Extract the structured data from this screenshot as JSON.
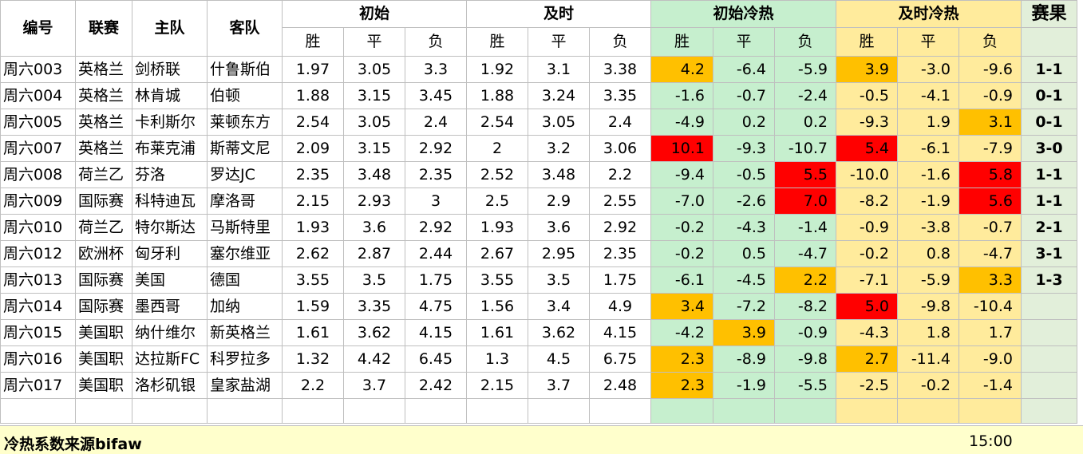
{
  "headers": {
    "id": "编号",
    "league": "联赛",
    "home": "主队",
    "away": "客队",
    "initial": "初始",
    "live": "及时",
    "initial_heat": "初始冷热",
    "live_heat": "及时冷热",
    "result": "赛果",
    "win": "胜",
    "draw": "平",
    "loss": "负"
  },
  "rows": [
    {
      "id": "周六003",
      "league": "英格兰",
      "home": "剑桥联",
      "away": "什鲁斯伯",
      "iw": "1.97",
      "id_": "3.05",
      "il": "3.3",
      "lw": "1.92",
      "ld": "3.1",
      "ll": "3.38",
      "hiw": "4.2",
      "hid": "-6.4",
      "hil": "-5.9",
      "hlw": "3.9",
      "hld": "-3.0",
      "hll": "-9.6",
      "result": "1-1"
    },
    {
      "id": "周六004",
      "league": "英格兰",
      "home": "林肯城",
      "away": "伯顿",
      "iw": "1.88",
      "id_": "3.15",
      "il": "3.45",
      "lw": "1.88",
      "ld": "3.24",
      "ll": "3.35",
      "hiw": "-1.6",
      "hid": "-0.7",
      "hil": "-2.4",
      "hlw": "-0.5",
      "hld": "-4.1",
      "hll": "-0.9",
      "result": "0-1"
    },
    {
      "id": "周六005",
      "league": "英格兰",
      "home": "卡利斯尔",
      "away": "莱顿东方",
      "iw": "2.54",
      "id_": "3.05",
      "il": "2.4",
      "lw": "2.54",
      "ld": "3.05",
      "ll": "2.4",
      "hiw": "-4.9",
      "hid": "0.2",
      "hil": "0.2",
      "hlw": "-9.3",
      "hld": "1.9",
      "hll": "3.1",
      "result": "0-1"
    },
    {
      "id": "周六007",
      "league": "英格兰",
      "home": "布莱克浦",
      "away": "斯蒂文尼",
      "iw": "2.09",
      "id_": "3.15",
      "il": "2.92",
      "lw": "2",
      "ld": "3.2",
      "ll": "3.06",
      "hiw": "10.1",
      "hid": "-9.3",
      "hil": "-10.7",
      "hlw": "5.4",
      "hld": "-6.1",
      "hll": "-7.9",
      "result": "3-0"
    },
    {
      "id": "周六008",
      "league": "荷兰乙",
      "home": "芬洛",
      "away": "罗达JC",
      "iw": "2.35",
      "id_": "3.48",
      "il": "2.35",
      "lw": "2.52",
      "ld": "3.48",
      "ll": "2.2",
      "hiw": "-9.4",
      "hid": "-0.5",
      "hil": "5.5",
      "hlw": "-10.0",
      "hld": "-1.6",
      "hll": "5.8",
      "result": "1-1"
    },
    {
      "id": "周六009",
      "league": "国际赛",
      "home": "科特迪瓦",
      "away": "摩洛哥",
      "iw": "2.15",
      "id_": "2.93",
      "il": "3",
      "lw": "2.5",
      "ld": "2.9",
      "ll": "2.55",
      "hiw": "-7.0",
      "hid": "-2.6",
      "hil": "7.0",
      "hlw": "-8.2",
      "hld": "-1.9",
      "hll": "5.6",
      "result": "1-1"
    },
    {
      "id": "周六010",
      "league": "荷兰乙",
      "home": "特尔斯达",
      "away": "马斯特里",
      "iw": "1.93",
      "id_": "3.6",
      "il": "2.92",
      "lw": "1.93",
      "ld": "3.6",
      "ll": "2.92",
      "hiw": "-0.2",
      "hid": "-4.3",
      "hil": "-1.4",
      "hlw": "-0.9",
      "hld": "-3.8",
      "hll": "-0.7",
      "result": "2-1"
    },
    {
      "id": "周六012",
      "league": "欧洲杯",
      "home": "匈牙利",
      "away": "塞尔维亚",
      "iw": "2.62",
      "id_": "2.87",
      "il": "2.44",
      "lw": "2.67",
      "ld": "2.95",
      "ll": "2.35",
      "hiw": "-0.2",
      "hid": "0.5",
      "hil": "-4.7",
      "hlw": "-0.2",
      "hld": "0.8",
      "hll": "-4.7",
      "result": "3-1"
    },
    {
      "id": "周六013",
      "league": "国际赛",
      "home": "美国",
      "away": "德国",
      "iw": "3.55",
      "id_": "3.5",
      "il": "1.75",
      "lw": "3.55",
      "ld": "3.5",
      "ll": "1.75",
      "hiw": "-6.1",
      "hid": "-4.5",
      "hil": "2.2",
      "hlw": "-7.1",
      "hld": "-5.9",
      "hll": "3.3",
      "result": "1-3"
    },
    {
      "id": "周六014",
      "league": "国际赛",
      "home": "墨西哥",
      "away": "加纳",
      "iw": "1.59",
      "id_": "3.35",
      "il": "4.75",
      "lw": "1.56",
      "ld": "3.4",
      "ll": "4.9",
      "hiw": "3.4",
      "hid": "-7.2",
      "hil": "-8.2",
      "hlw": "5.0",
      "hld": "-9.8",
      "hll": "-10.4",
      "result": ""
    },
    {
      "id": "周六015",
      "league": "美国职",
      "home": "纳什维尔",
      "away": "新英格兰",
      "iw": "1.61",
      "id_": "3.62",
      "il": "4.15",
      "lw": "1.61",
      "ld": "3.62",
      "ll": "4.15",
      "hiw": "-4.2",
      "hid": "3.9",
      "hil": "-0.9",
      "hlw": "-4.3",
      "hld": "1.8",
      "hll": "1.7",
      "result": ""
    },
    {
      "id": "周六016",
      "league": "美国职",
      "home": "达拉斯FC",
      "away": "科罗拉多",
      "iw": "1.32",
      "id_": "4.42",
      "il": "6.45",
      "lw": "1.3",
      "ld": "4.5",
      "ll": "6.75",
      "hiw": "2.3",
      "hid": "-8.9",
      "hil": "-9.8",
      "hlw": "2.7",
      "hld": "-11.4",
      "hll": "-9.0",
      "result": ""
    },
    {
      "id": "周六017",
      "league": "美国职",
      "home": "洛杉矶银",
      "away": "皇家盐湖",
      "iw": "2.2",
      "id_": "3.7",
      "il": "2.42",
      "lw": "2.15",
      "ld": "3.7",
      "ll": "2.48",
      "hiw": "2.3",
      "hid": "-1.9",
      "hil": "-5.5",
      "hlw": "-2.5",
      "hld": "-0.2",
      "hll": "-1.4",
      "result": ""
    }
  ],
  "highlights": {
    "colors": {
      "orange": "#ffc000",
      "red": "#ff0000",
      "green": "#c6efce",
      "yellow": "#ffeb9c"
    },
    "cells": [
      {
        "row": 0,
        "col": "hiw",
        "color": "orange"
      },
      {
        "row": 0,
        "col": "hlw",
        "color": "orange"
      },
      {
        "row": 2,
        "col": "hll",
        "color": "orange"
      },
      {
        "row": 3,
        "col": "hiw",
        "color": "red"
      },
      {
        "row": 3,
        "col": "hlw",
        "color": "red"
      },
      {
        "row": 4,
        "col": "hil",
        "color": "red"
      },
      {
        "row": 4,
        "col": "hll",
        "color": "red"
      },
      {
        "row": 5,
        "col": "hil",
        "color": "red"
      },
      {
        "row": 5,
        "col": "hll",
        "color": "red"
      },
      {
        "row": 8,
        "col": "hil",
        "color": "orange"
      },
      {
        "row": 8,
        "col": "hll",
        "color": "orange"
      },
      {
        "row": 9,
        "col": "hiw",
        "color": "orange"
      },
      {
        "row": 9,
        "col": "hlw",
        "color": "red"
      },
      {
        "row": 10,
        "col": "hid",
        "color": "orange"
      },
      {
        "row": 11,
        "col": "hiw",
        "color": "orange"
      },
      {
        "row": 11,
        "col": "hlw",
        "color": "orange"
      },
      {
        "row": 12,
        "col": "hiw",
        "color": "orange"
      }
    ]
  },
  "footer": {
    "source": "冷热系数来源bifaw",
    "time": "15:00"
  }
}
